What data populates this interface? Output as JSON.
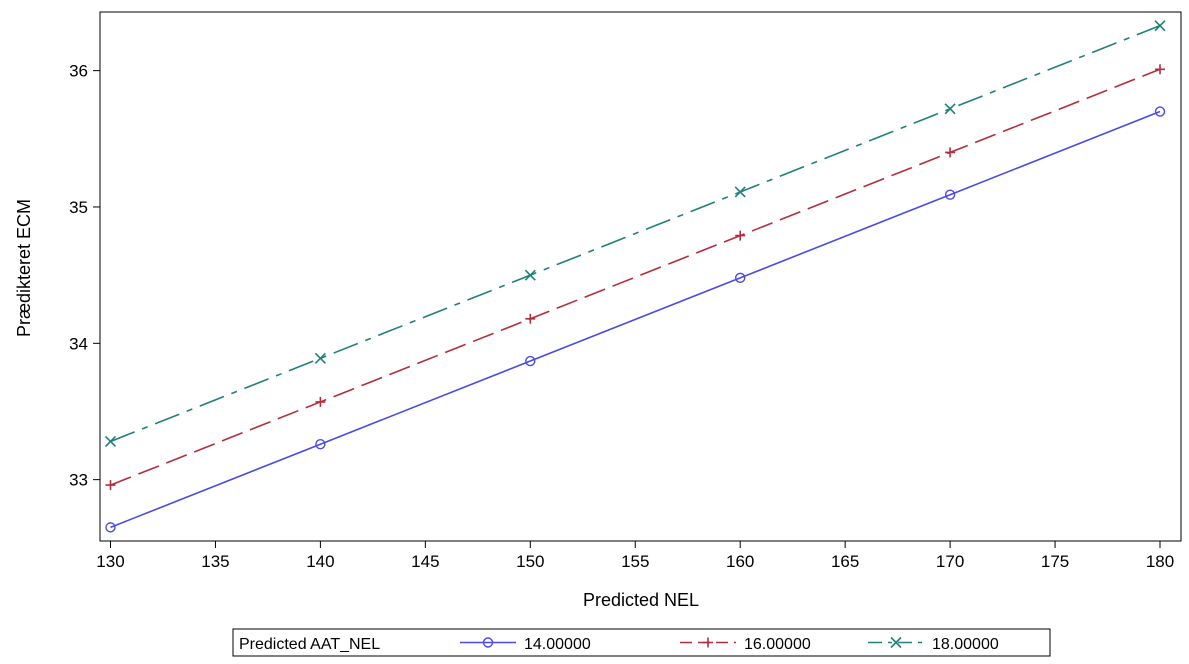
{
  "chart_data": {
    "type": "line",
    "xlabel": "Predicted NEL",
    "ylabel": "Prædikteret ECM",
    "x": [
      130,
      140,
      150,
      160,
      170,
      180
    ],
    "xlim": [
      129.5,
      181
    ],
    "ylim": [
      32.55,
      36.43
    ],
    "xticks": [
      130,
      135,
      140,
      145,
      150,
      155,
      160,
      165,
      170,
      175,
      180
    ],
    "yticks": [
      33,
      34,
      35,
      36
    ],
    "grid": false,
    "legend": {
      "title": "Predicted AAT_NEL",
      "placement": "bottom"
    },
    "series": [
      {
        "name": "14.00000",
        "values": [
          32.65,
          33.26,
          33.87,
          34.48,
          35.09,
          35.7
        ],
        "color": "#4a4ae6",
        "marker": "circle",
        "dash": "solid"
      },
      {
        "name": "16.00000",
        "values": [
          32.96,
          33.57,
          34.18,
          34.79,
          35.4,
          36.01
        ],
        "color": "#b22e3f",
        "marker": "plus",
        "dash": "dashed"
      },
      {
        "name": "18.00000",
        "values": [
          33.28,
          33.89,
          34.5,
          35.11,
          35.72,
          36.33
        ],
        "color": "#20807a",
        "marker": "x",
        "dash": "dashdot"
      }
    ]
  }
}
